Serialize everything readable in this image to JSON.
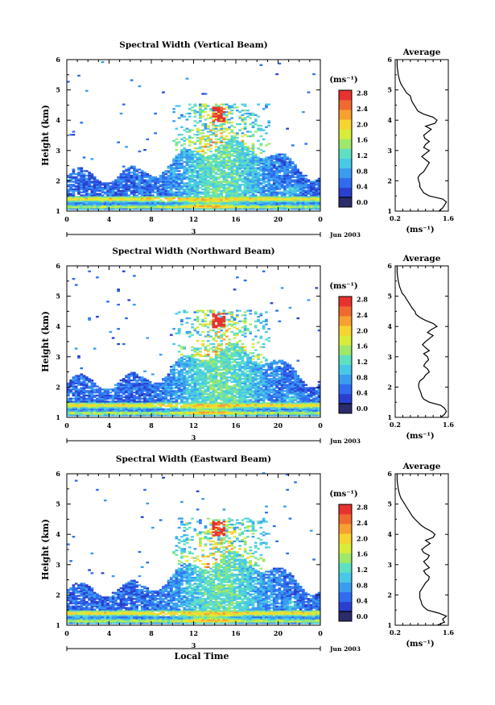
{
  "chart_data": [
    {
      "type": "heatmap",
      "title": "Spectral Width (Vertical Beam)",
      "ylabel": "Height (km)",
      "x_ticks": [
        "0",
        "4",
        "8",
        "12",
        "16",
        "20",
        "0"
      ],
      "xlim": [
        0,
        24
      ],
      "ylim": [
        1,
        6
      ],
      "y_ticks": [
        "1",
        "2",
        "3",
        "4",
        "5",
        "6"
      ],
      "day_label": "3",
      "date_label": "Jun 2003",
      "colorbar": {
        "unit": "(ms⁻¹)",
        "ticks": [
          "0.0",
          "0.4",
          "0.8",
          "1.2",
          "1.6",
          "2.0",
          "2.4",
          "2.8"
        ],
        "range": [
          0.0,
          3.0
        ]
      },
      "average_profile": {
        "title": "Average",
        "xlim": [
          0.2,
          1.6
        ],
        "x_ticks": [
          "0.2",
          "1.6"
        ],
        "xlabel": "(ms⁻¹)",
        "height": [
          1.0,
          1.1,
          1.2,
          1.3,
          1.4,
          1.5,
          1.6,
          1.7,
          1.8,
          1.9,
          2.0,
          2.1,
          2.2,
          2.3,
          2.4,
          2.5,
          2.6,
          2.7,
          2.8,
          2.9,
          3.0,
          3.1,
          3.2,
          3.3,
          3.4,
          3.5,
          3.6,
          3.7,
          3.8,
          3.9,
          4.0,
          4.1,
          4.2,
          4.3,
          4.4,
          4.5,
          4.6,
          4.7,
          4.8,
          4.9,
          5.0,
          5.1,
          5.2,
          5.3,
          5.4,
          5.5,
          5.6,
          5.7,
          5.8,
          5.9,
          6.0
        ],
        "width": [
          1.35,
          1.45,
          1.5,
          1.55,
          1.45,
          1.1,
          0.95,
          0.9,
          0.85,
          0.85,
          0.82,
          0.8,
          0.85,
          0.95,
          1.0,
          1.05,
          1.1,
          1.0,
          0.9,
          1.0,
          1.1,
          0.95,
          1.0,
          1.1,
          0.98,
          0.95,
          1.05,
          1.15,
          1.0,
          1.25,
          1.3,
          1.2,
          0.95,
          0.8,
          0.75,
          0.7,
          0.65,
          0.62,
          0.6,
          0.5,
          0.45,
          0.4,
          0.35,
          0.32,
          0.3,
          0.28,
          0.27,
          0.26,
          0.25,
          0.25,
          0.25
        ]
      }
    },
    {
      "type": "heatmap",
      "title": "Spectral Width (Northward Beam)",
      "ylabel": "Height (km)",
      "x_ticks": [
        "0",
        "4",
        "8",
        "12",
        "16",
        "20",
        "0"
      ],
      "xlim": [
        0,
        24
      ],
      "ylim": [
        1,
        6
      ],
      "y_ticks": [
        "1",
        "2",
        "3",
        "4",
        "5",
        "6"
      ],
      "day_label": "3",
      "date_label": "Jun 2003",
      "colorbar": {
        "unit": "(ms⁻¹)",
        "ticks": [
          "0.0",
          "0.4",
          "0.8",
          "1.2",
          "1.6",
          "2.0",
          "2.4",
          "2.8"
        ],
        "range": [
          0.0,
          3.0
        ]
      },
      "average_profile": {
        "title": "Average",
        "xlim": [
          0.2,
          1.6
        ],
        "x_ticks": [
          "0.2",
          "1.6"
        ],
        "xlabel": "(ms⁻¹)",
        "height": [
          1.0,
          1.1,
          1.2,
          1.3,
          1.4,
          1.5,
          1.6,
          1.7,
          1.8,
          1.9,
          2.0,
          2.1,
          2.2,
          2.3,
          2.4,
          2.5,
          2.6,
          2.7,
          2.8,
          2.9,
          3.0,
          3.1,
          3.2,
          3.3,
          3.4,
          3.5,
          3.6,
          3.7,
          3.8,
          3.9,
          4.0,
          4.1,
          4.2,
          4.3,
          4.4,
          4.5,
          4.6,
          4.7,
          4.8,
          4.9,
          5.0,
          5.1,
          5.2,
          5.3,
          5.4,
          5.5,
          5.6,
          5.7,
          5.8,
          5.9,
          6.0
        ],
        "width": [
          1.4,
          1.5,
          1.55,
          1.5,
          1.4,
          1.1,
          0.95,
          0.9,
          0.88,
          0.85,
          0.82,
          0.82,
          0.85,
          0.95,
          1.0,
          1.1,
          1.05,
          0.95,
          1.0,
          1.08,
          1.05,
          0.95,
          1.1,
          1.0,
          0.92,
          1.0,
          1.1,
          1.2,
          1.05,
          1.15,
          1.3,
          1.2,
          1.0,
          0.85,
          0.75,
          0.72,
          0.65,
          0.6,
          0.55,
          0.5,
          0.45,
          0.38,
          0.35,
          0.32,
          0.3,
          0.28,
          0.27,
          0.26,
          0.25,
          0.25,
          0.25
        ]
      }
    },
    {
      "type": "heatmap",
      "title": "Spectral Width (Eastward Beam)",
      "ylabel": "Height (km)",
      "xlabel": "Local Time",
      "x_ticks": [
        "0",
        "4",
        "8",
        "12",
        "16",
        "20",
        "0"
      ],
      "xlim": [
        0,
        24
      ],
      "ylim": [
        1,
        6
      ],
      "y_ticks": [
        "1",
        "2",
        "3",
        "4",
        "5",
        "6"
      ],
      "day_label": "3",
      "date_label": "Jun 2003",
      "colorbar": {
        "unit": "(ms⁻¹)",
        "ticks": [
          "0.0",
          "0.4",
          "0.8",
          "1.2",
          "1.6",
          "2.0",
          "2.4",
          "2.8"
        ],
        "range": [
          0.0,
          3.0
        ]
      },
      "average_profile": {
        "title": "Average",
        "xlim": [
          0.2,
          1.6
        ],
        "x_ticks": [
          "0.2",
          "1.6"
        ],
        "xlabel": "(ms⁻¹)",
        "height": [
          1.0,
          1.1,
          1.2,
          1.3,
          1.4,
          1.5,
          1.6,
          1.7,
          1.8,
          1.9,
          2.0,
          2.1,
          2.2,
          2.3,
          2.4,
          2.5,
          2.6,
          2.7,
          2.8,
          2.9,
          3.0,
          3.1,
          3.2,
          3.3,
          3.4,
          3.5,
          3.6,
          3.7,
          3.8,
          3.9,
          4.0,
          4.1,
          4.2,
          4.3,
          4.4,
          4.5,
          4.6,
          4.7,
          4.8,
          4.9,
          5.0,
          5.1,
          5.2,
          5.3,
          5.4,
          5.5,
          5.6,
          5.7,
          5.8,
          5.9,
          6.0
        ],
        "width": [
          1.3,
          1.5,
          1.45,
          1.55,
          1.35,
          1.05,
          0.95,
          0.9,
          0.88,
          0.85,
          0.85,
          0.85,
          0.9,
          0.95,
          1.0,
          1.08,
          1.1,
          1.0,
          0.95,
          1.1,
          1.02,
          0.95,
          1.05,
          1.1,
          0.95,
          0.9,
          1.0,
          1.12,
          1.0,
          1.2,
          1.25,
          1.15,
          1.0,
          0.88,
          0.8,
          0.72,
          0.65,
          0.6,
          0.55,
          0.5,
          0.45,
          0.4,
          0.35,
          0.32,
          0.3,
          0.28,
          0.27,
          0.26,
          0.25,
          0.25,
          0.25
        ]
      }
    }
  ],
  "colors": {
    "scale": [
      "#2b2b6e",
      "#2a3fd0",
      "#2f6cf0",
      "#3a9cf0",
      "#48c8e8",
      "#5fe0c0",
      "#9ee86a",
      "#d8ec3a",
      "#f8d430",
      "#f8a030",
      "#f06a2e",
      "#e8322e"
    ]
  }
}
